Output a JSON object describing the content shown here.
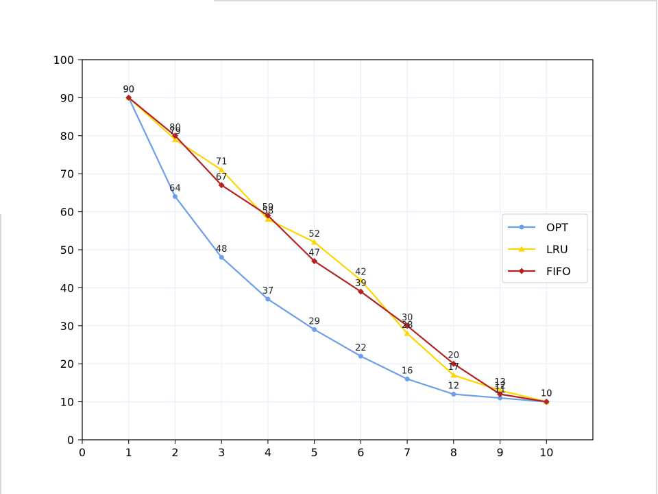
{
  "chart_data": {
    "type": "line",
    "title": "",
    "xlabel": "",
    "ylabel": "",
    "x": [
      1,
      2,
      3,
      4,
      5,
      6,
      7,
      8,
      9,
      10
    ],
    "xlim": [
      0,
      11
    ],
    "ylim": [
      0,
      100
    ],
    "xticks": [
      0,
      1,
      2,
      3,
      4,
      5,
      6,
      7,
      8,
      9,
      10
    ],
    "yticks": [
      0,
      10,
      20,
      30,
      40,
      50,
      60,
      70,
      80,
      90,
      100
    ],
    "grid": true,
    "legend_position": "center-right",
    "series": [
      {
        "name": "OPT",
        "color": "#6d9eeb",
        "marker": "circle",
        "values": [
          90,
          64,
          48,
          37,
          29,
          22,
          16,
          12,
          11,
          10
        ]
      },
      {
        "name": "LRU",
        "color": "#ffd500",
        "marker": "triangle",
        "values": [
          90,
          79,
          71,
          58,
          52,
          42,
          28,
          17,
          13,
          10
        ]
      },
      {
        "name": "FIFO",
        "color": "#b22222",
        "marker": "diamond",
        "values": [
          90,
          80,
          67,
          59,
          47,
          39,
          30,
          20,
          12,
          10
        ]
      }
    ]
  }
}
